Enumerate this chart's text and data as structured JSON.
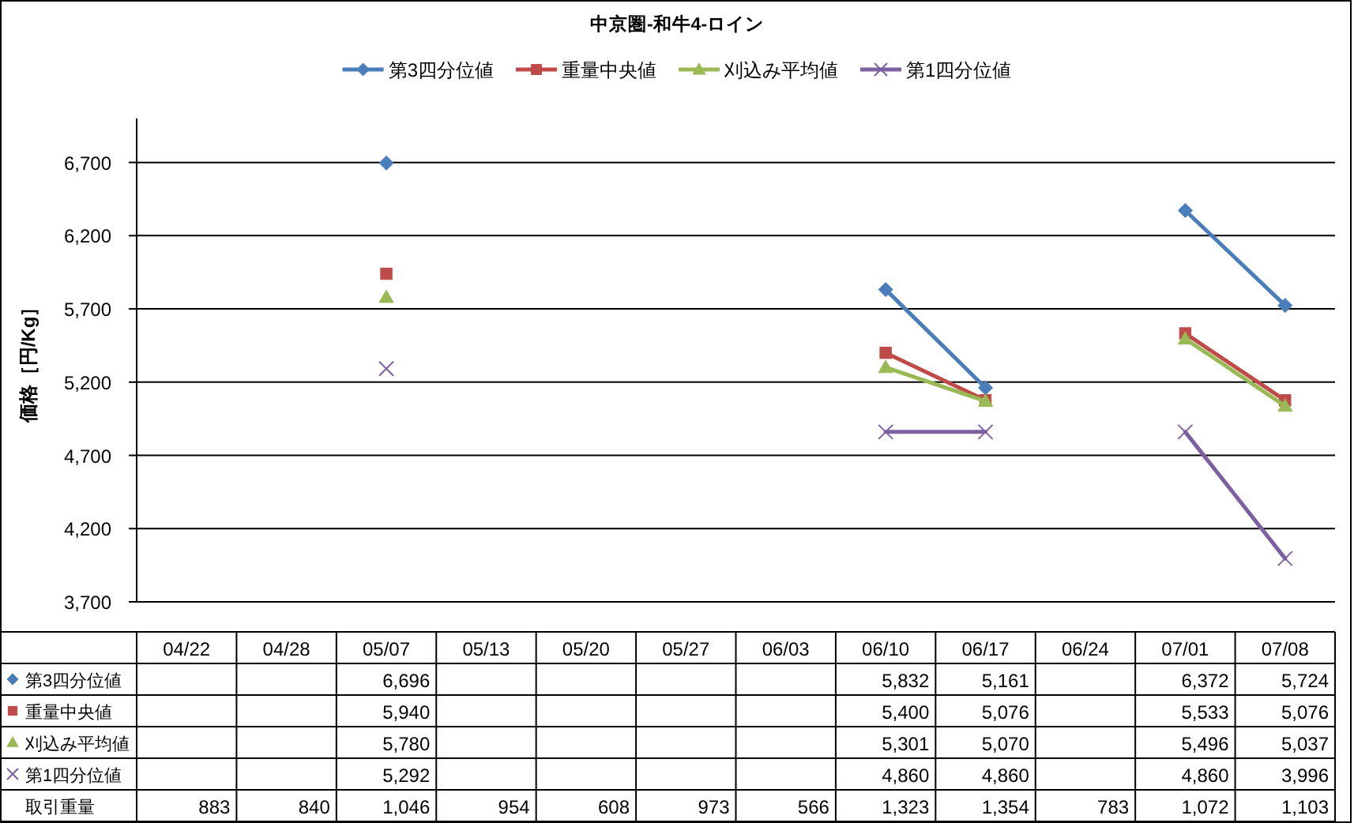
{
  "chart_data": {
    "type": "line",
    "title": "中京圏-和牛4-ロイン",
    "ylabel": "価格［円/Kg］",
    "categories": [
      "04/22",
      "04/28",
      "05/07",
      "05/13",
      "05/20",
      "05/27",
      "06/03",
      "06/10",
      "06/17",
      "06/24",
      "07/01",
      "07/08"
    ],
    "series": [
      {
        "name": "第3四分位値",
        "color": "#4a7ebb",
        "marker": "diamond",
        "values": [
          null,
          null,
          6696,
          null,
          null,
          null,
          null,
          5832,
          5161,
          null,
          6372,
          5724
        ],
        "value_labels": [
          null,
          null,
          "6,696",
          null,
          null,
          null,
          null,
          "5,832",
          "5,161",
          null,
          "6,372",
          "5,724"
        ]
      },
      {
        "name": "重量中央値",
        "color": "#be4b48",
        "marker": "square",
        "values": [
          null,
          null,
          5940,
          null,
          null,
          null,
          null,
          5400,
          5076,
          null,
          5533,
          5076
        ],
        "value_labels": [
          null,
          null,
          "5,940",
          null,
          null,
          null,
          null,
          "5,400",
          "5,076",
          null,
          "5,533",
          "5,076"
        ]
      },
      {
        "name": "刈込み平均値",
        "color": "#98b954",
        "marker": "triangle",
        "values": [
          null,
          null,
          5780,
          null,
          null,
          null,
          null,
          5301,
          5070,
          null,
          5496,
          5037
        ],
        "value_labels": [
          null,
          null,
          "5,780",
          null,
          null,
          null,
          null,
          "5,301",
          "5,070",
          null,
          "5,496",
          "5,037"
        ]
      },
      {
        "name": "第1四分位値",
        "color": "#7d60a0",
        "marker": "cross",
        "values": [
          null,
          null,
          5292,
          null,
          null,
          null,
          null,
          4860,
          4860,
          null,
          4860,
          3996
        ],
        "value_labels": [
          null,
          null,
          "5,292",
          null,
          null,
          null,
          null,
          "4,860",
          "4,860",
          null,
          "4,860",
          "3,996"
        ]
      }
    ],
    "ylim": [
      3700,
      7000
    ],
    "yticks": [
      {
        "value": 3700,
        "label": "3,700"
      },
      {
        "value": 4200,
        "label": "4,200"
      },
      {
        "value": 4700,
        "label": "4,700"
      },
      {
        "value": 5200,
        "label": "5,200"
      },
      {
        "value": 5700,
        "label": "5,700"
      },
      {
        "value": 6200,
        "label": "6,200"
      },
      {
        "value": 6700,
        "label": "6,700"
      }
    ],
    "grid": "y",
    "legend": "top",
    "annotations": [
      "取引重量",
      "883",
      "840",
      "1,046",
      "954",
      "608",
      "973",
      "566",
      "1,323",
      "1,354",
      "783",
      "1,072",
      "1,103"
    ]
  }
}
